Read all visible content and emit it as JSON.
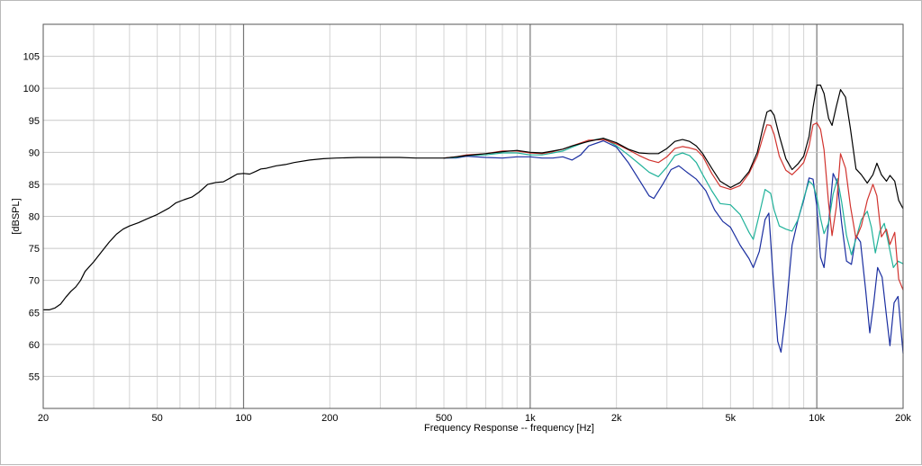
{
  "chart_data": {
    "type": "line",
    "title": "",
    "xlabel": "Frequency Response -- frequency [Hz]",
    "ylabel": "[dBSPL]",
    "x_scale": "log",
    "xlim": [
      20,
      20000
    ],
    "ylim": [
      50,
      110
    ],
    "grid": true,
    "x_ticks": [
      {
        "value": 20,
        "label": "20"
      },
      {
        "value": 50,
        "label": "50"
      },
      {
        "value": 100,
        "label": "100"
      },
      {
        "value": 200,
        "label": "200"
      },
      {
        "value": 500,
        "label": "500"
      },
      {
        "value": 1000,
        "label": "1k"
      },
      {
        "value": 2000,
        "label": "2k"
      },
      {
        "value": 5000,
        "label": "5k"
      },
      {
        "value": 10000,
        "label": "10k"
      },
      {
        "value": 20000,
        "label": "20k"
      }
    ],
    "y_ticks": [
      {
        "value": 55,
        "label": "55"
      },
      {
        "value": 60,
        "label": "60"
      },
      {
        "value": 65,
        "label": "65"
      },
      {
        "value": 70,
        "label": "70"
      },
      {
        "value": 75,
        "label": "75"
      },
      {
        "value": 80,
        "label": "80"
      },
      {
        "value": 85,
        "label": "85"
      },
      {
        "value": 90,
        "label": "90"
      },
      {
        "value": 95,
        "label": "95"
      },
      {
        "value": 100,
        "label": "100"
      },
      {
        "value": 105,
        "label": "105"
      }
    ],
    "series": [
      {
        "color": "#000000",
        "points": [
          [
            20,
            65.4
          ],
          [
            21,
            65.4
          ],
          [
            22,
            65.7
          ],
          [
            23,
            66.3
          ],
          [
            24,
            67.4
          ],
          [
            25,
            68.3
          ],
          [
            26,
            69.0
          ],
          [
            27,
            70.0
          ],
          [
            28,
            71.4
          ],
          [
            30,
            72.9
          ],
          [
            32,
            74.5
          ],
          [
            34,
            76.0
          ],
          [
            36,
            77.2
          ],
          [
            38,
            78.0
          ],
          [
            40,
            78.5
          ],
          [
            43,
            79.0
          ],
          [
            46,
            79.6
          ],
          [
            50,
            80.3
          ],
          [
            55,
            81.3
          ],
          [
            58,
            82.1
          ],
          [
            62,
            82.6
          ],
          [
            66,
            83.0
          ],
          [
            70,
            83.8
          ],
          [
            75,
            85.0
          ],
          [
            80,
            85.3
          ],
          [
            85,
            85.4
          ],
          [
            90,
            86.0
          ],
          [
            95,
            86.6
          ],
          [
            100,
            86.7
          ],
          [
            105,
            86.6
          ],
          [
            110,
            87.0
          ],
          [
            115,
            87.4
          ],
          [
            120,
            87.5
          ],
          [
            130,
            87.9
          ],
          [
            140,
            88.1
          ],
          [
            150,
            88.4
          ],
          [
            170,
            88.8
          ],
          [
            190,
            89.0
          ],
          [
            210,
            89.1
          ],
          [
            250,
            89.2
          ],
          [
            300,
            89.2
          ],
          [
            350,
            89.2
          ],
          [
            400,
            89.1
          ],
          [
            450,
            89.1
          ],
          [
            500,
            89.1
          ],
          [
            550,
            89.3
          ],
          [
            600,
            89.5
          ],
          [
            700,
            89.8
          ],
          [
            800,
            90.1
          ],
          [
            900,
            90.3
          ],
          [
            1000,
            90.0
          ],
          [
            1100,
            89.9
          ],
          [
            1200,
            90.2
          ],
          [
            1300,
            90.5
          ],
          [
            1400,
            91.0
          ],
          [
            1600,
            91.7
          ],
          [
            1800,
            92.2
          ],
          [
            2000,
            91.5
          ],
          [
            2200,
            90.5
          ],
          [
            2400,
            89.9
          ],
          [
            2600,
            89.8
          ],
          [
            2800,
            89.8
          ],
          [
            3000,
            90.6
          ],
          [
            3200,
            91.7
          ],
          [
            3400,
            92.0
          ],
          [
            3600,
            91.7
          ],
          [
            3800,
            91.0
          ],
          [
            4000,
            89.8
          ],
          [
            4300,
            87.5
          ],
          [
            4600,
            85.5
          ],
          [
            5000,
            84.5
          ],
          [
            5400,
            85.3
          ],
          [
            5800,
            87.0
          ],
          [
            6200,
            90.0
          ],
          [
            6500,
            94.0
          ],
          [
            6700,
            96.3
          ],
          [
            6900,
            96.6
          ],
          [
            7100,
            95.8
          ],
          [
            7400,
            92.6
          ],
          [
            7800,
            89.0
          ],
          [
            8200,
            87.3
          ],
          [
            8600,
            88.2
          ],
          [
            9000,
            89.4
          ],
          [
            9400,
            92.5
          ],
          [
            9700,
            97.0
          ],
          [
            10000,
            100.5
          ],
          [
            10300,
            100.5
          ],
          [
            10600,
            99.2
          ],
          [
            11000,
            95.3
          ],
          [
            11300,
            94.2
          ],
          [
            11700,
            97.2
          ],
          [
            12100,
            99.8
          ],
          [
            12600,
            98.6
          ],
          [
            13100,
            93.7
          ],
          [
            13700,
            87.4
          ],
          [
            14300,
            86.5
          ],
          [
            15000,
            85.2
          ],
          [
            15700,
            86.5
          ],
          [
            16200,
            88.3
          ],
          [
            16800,
            86.5
          ],
          [
            17500,
            85.5
          ],
          [
            18000,
            86.4
          ],
          [
            18700,
            85.5
          ],
          [
            19300,
            82.5
          ],
          [
            20000,
            81.2
          ]
        ]
      },
      {
        "color": "#d1332e",
        "points": [
          [
            500,
            89.1
          ],
          [
            550,
            89.3
          ],
          [
            600,
            89.6
          ],
          [
            700,
            89.8
          ],
          [
            800,
            90.2
          ],
          [
            900,
            90.2
          ],
          [
            1000,
            89.9
          ],
          [
            1100,
            89.8
          ],
          [
            1200,
            90.1
          ],
          [
            1300,
            90.5
          ],
          [
            1400,
            91.0
          ],
          [
            1600,
            91.9
          ],
          [
            1800,
            92.0
          ],
          [
            2000,
            91.3
          ],
          [
            2200,
            90.4
          ],
          [
            2400,
            89.5
          ],
          [
            2600,
            88.8
          ],
          [
            2800,
            88.4
          ],
          [
            3000,
            89.3
          ],
          [
            3200,
            90.6
          ],
          [
            3400,
            90.9
          ],
          [
            3600,
            90.7
          ],
          [
            3800,
            90.4
          ],
          [
            4000,
            89.4
          ],
          [
            4300,
            86.7
          ],
          [
            4600,
            84.7
          ],
          [
            5000,
            84.2
          ],
          [
            5400,
            84.8
          ],
          [
            5800,
            86.7
          ],
          [
            6200,
            89.4
          ],
          [
            6500,
            92.5
          ],
          [
            6700,
            94.3
          ],
          [
            6900,
            94.2
          ],
          [
            7100,
            92.8
          ],
          [
            7400,
            89.4
          ],
          [
            7800,
            87.2
          ],
          [
            8200,
            86.5
          ],
          [
            8600,
            87.4
          ],
          [
            9000,
            88.4
          ],
          [
            9400,
            91.0
          ],
          [
            9700,
            94.3
          ],
          [
            10000,
            94.6
          ],
          [
            10300,
            93.6
          ],
          [
            10600,
            90.4
          ],
          [
            11000,
            82.0
          ],
          [
            11300,
            77.0
          ],
          [
            11700,
            81.5
          ],
          [
            12100,
            89.8
          ],
          [
            12600,
            87.5
          ],
          [
            13100,
            81.6
          ],
          [
            13700,
            76.5
          ],
          [
            14300,
            78.5
          ],
          [
            15000,
            82.5
          ],
          [
            15700,
            85.0
          ],
          [
            16200,
            83.2
          ],
          [
            16800,
            76.8
          ],
          [
            17500,
            78.0
          ],
          [
            18000,
            75.6
          ],
          [
            18700,
            77.5
          ],
          [
            19300,
            70.2
          ],
          [
            20000,
            68.5
          ]
        ]
      },
      {
        "color": "#20b29a",
        "points": [
          [
            500,
            89.1
          ],
          [
            550,
            89.2
          ],
          [
            600,
            89.5
          ],
          [
            700,
            89.6
          ],
          [
            800,
            89.9
          ],
          [
            900,
            89.9
          ],
          [
            1000,
            89.6
          ],
          [
            1100,
            89.6
          ],
          [
            1200,
            89.9
          ],
          [
            1300,
            90.2
          ],
          [
            1400,
            90.8
          ],
          [
            1600,
            91.8
          ],
          [
            1800,
            92.2
          ],
          [
            2000,
            91.0
          ],
          [
            2200,
            89.6
          ],
          [
            2400,
            88.2
          ],
          [
            2600,
            86.9
          ],
          [
            2800,
            86.2
          ],
          [
            3000,
            87.7
          ],
          [
            3200,
            89.5
          ],
          [
            3400,
            89.9
          ],
          [
            3600,
            89.5
          ],
          [
            3800,
            88.4
          ],
          [
            4000,
            86.5
          ],
          [
            4300,
            84.0
          ],
          [
            4600,
            82.0
          ],
          [
            5000,
            81.8
          ],
          [
            5400,
            80.3
          ],
          [
            5800,
            77.5
          ],
          [
            6000,
            76.4
          ],
          [
            6300,
            80.3
          ],
          [
            6600,
            84.2
          ],
          [
            6900,
            83.6
          ],
          [
            7100,
            81.0
          ],
          [
            7400,
            78.5
          ],
          [
            7800,
            78.0
          ],
          [
            8200,
            77.7
          ],
          [
            8600,
            79.5
          ],
          [
            9000,
            82.8
          ],
          [
            9400,
            85.5
          ],
          [
            9700,
            84.9
          ],
          [
            10000,
            83.0
          ],
          [
            10300,
            79.7
          ],
          [
            10600,
            77.3
          ],
          [
            11000,
            79.0
          ],
          [
            11400,
            83.5
          ],
          [
            11800,
            85.9
          ],
          [
            12200,
            82.3
          ],
          [
            12700,
            77.0
          ],
          [
            13200,
            74.0
          ],
          [
            13700,
            76.5
          ],
          [
            14300,
            79.5
          ],
          [
            15000,
            80.8
          ],
          [
            15500,
            78.3
          ],
          [
            16000,
            74.3
          ],
          [
            16600,
            77.7
          ],
          [
            17200,
            78.9
          ],
          [
            17800,
            75.7
          ],
          [
            18500,
            72.0
          ],
          [
            19200,
            73.0
          ],
          [
            20000,
            72.6
          ]
        ]
      },
      {
        "color": "#1a2ea0",
        "points": [
          [
            500,
            89.1
          ],
          [
            550,
            89.1
          ],
          [
            600,
            89.4
          ],
          [
            700,
            89.2
          ],
          [
            800,
            89.1
          ],
          [
            900,
            89.3
          ],
          [
            1000,
            89.3
          ],
          [
            1100,
            89.1
          ],
          [
            1200,
            89.1
          ],
          [
            1300,
            89.3
          ],
          [
            1400,
            88.8
          ],
          [
            1500,
            89.6
          ],
          [
            1600,
            91.0
          ],
          [
            1800,
            91.8
          ],
          [
            2000,
            90.8
          ],
          [
            2200,
            88.4
          ],
          [
            2400,
            85.7
          ],
          [
            2600,
            83.2
          ],
          [
            2700,
            82.8
          ],
          [
            2900,
            85.0
          ],
          [
            3100,
            87.3
          ],
          [
            3300,
            87.9
          ],
          [
            3500,
            87.0
          ],
          [
            3800,
            85.8
          ],
          [
            4100,
            84.0
          ],
          [
            4400,
            81.0
          ],
          [
            4700,
            79.2
          ],
          [
            5000,
            78.3
          ],
          [
            5400,
            75.5
          ],
          [
            5800,
            73.4
          ],
          [
            6000,
            72.0
          ],
          [
            6300,
            74.5
          ],
          [
            6600,
            79.5
          ],
          [
            6800,
            80.5
          ],
          [
            7000,
            72.0
          ],
          [
            7300,
            60.5
          ],
          [
            7500,
            58.8
          ],
          [
            7800,
            65.0
          ],
          [
            8200,
            75.5
          ],
          [
            8600,
            79.5
          ],
          [
            9000,
            82.5
          ],
          [
            9400,
            86.0
          ],
          [
            9700,
            85.8
          ],
          [
            10000,
            81.5
          ],
          [
            10300,
            73.6
          ],
          [
            10600,
            72.0
          ],
          [
            11000,
            79.0
          ],
          [
            11400,
            86.7
          ],
          [
            11800,
            85.2
          ],
          [
            12200,
            79.0
          ],
          [
            12700,
            73.0
          ],
          [
            13200,
            72.5
          ],
          [
            13700,
            77.0
          ],
          [
            14200,
            76.0
          ],
          [
            14800,
            68.5
          ],
          [
            15300,
            61.8
          ],
          [
            15800,
            66.5
          ],
          [
            16300,
            72.0
          ],
          [
            16900,
            70.5
          ],
          [
            17500,
            64.5
          ],
          [
            18000,
            59.8
          ],
          [
            18600,
            66.5
          ],
          [
            19200,
            67.5
          ],
          [
            20000,
            58.6
          ]
        ]
      }
    ]
  }
}
